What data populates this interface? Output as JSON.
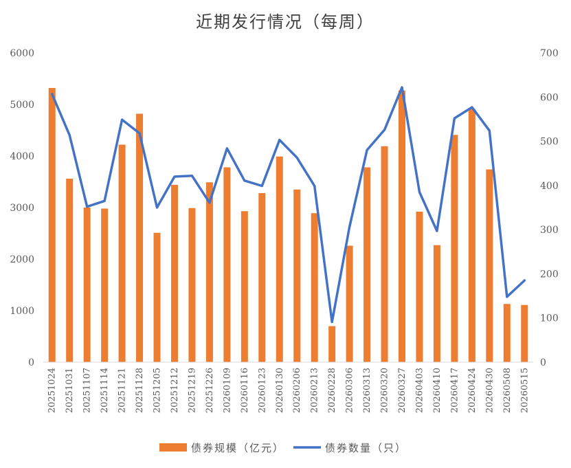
{
  "chart_data": {
    "type": "bar",
    "title": "近期发行情况（每周）",
    "categories": [
      "20251024",
      "20251031",
      "20251107",
      "20251114",
      "20251121",
      "20251128",
      "20251205",
      "20251212",
      "20251219",
      "20251226",
      "20260109",
      "20260116",
      "20260123",
      "20260130",
      "20260206",
      "20260213",
      "20260228",
      "20260306",
      "20260313",
      "20260320",
      "20260327",
      "20260403",
      "20260410",
      "20260417",
      "20260424",
      "20260430",
      "20260508",
      "20260515"
    ],
    "series": [
      {
        "name": "债券规模（亿元）",
        "type": "bar",
        "axis": "left",
        "color": "#ED7D31",
        "values": [
          5320,
          3560,
          3000,
          2980,
          4220,
          4820,
          2510,
          3440,
          2990,
          3490,
          3780,
          2930,
          3280,
          3990,
          3350,
          2890,
          700,
          2260,
          3780,
          4190,
          5270,
          2920,
          2270,
          4410,
          4910,
          3740,
          1130,
          1110
        ]
      },
      {
        "name": "债券数量（只）",
        "type": "line",
        "axis": "right",
        "color": "#4472C4",
        "values": [
          607,
          514,
          352,
          365,
          549,
          518,
          350,
          420,
          422,
          361,
          484,
          411,
          399,
          503,
          463,
          399,
          91,
          306,
          480,
          526,
          622,
          385,
          297,
          552,
          577,
          524,
          148,
          185
        ]
      }
    ],
    "ylim_left": [
      0,
      6000
    ],
    "yticks_left": [
      0,
      1000,
      2000,
      3000,
      4000,
      5000,
      6000
    ],
    "ylim_right": [
      0,
      700
    ],
    "yticks_right": [
      0,
      100,
      200,
      300,
      400,
      500,
      600,
      700
    ],
    "grid": false,
    "legend_position": "bottom"
  }
}
